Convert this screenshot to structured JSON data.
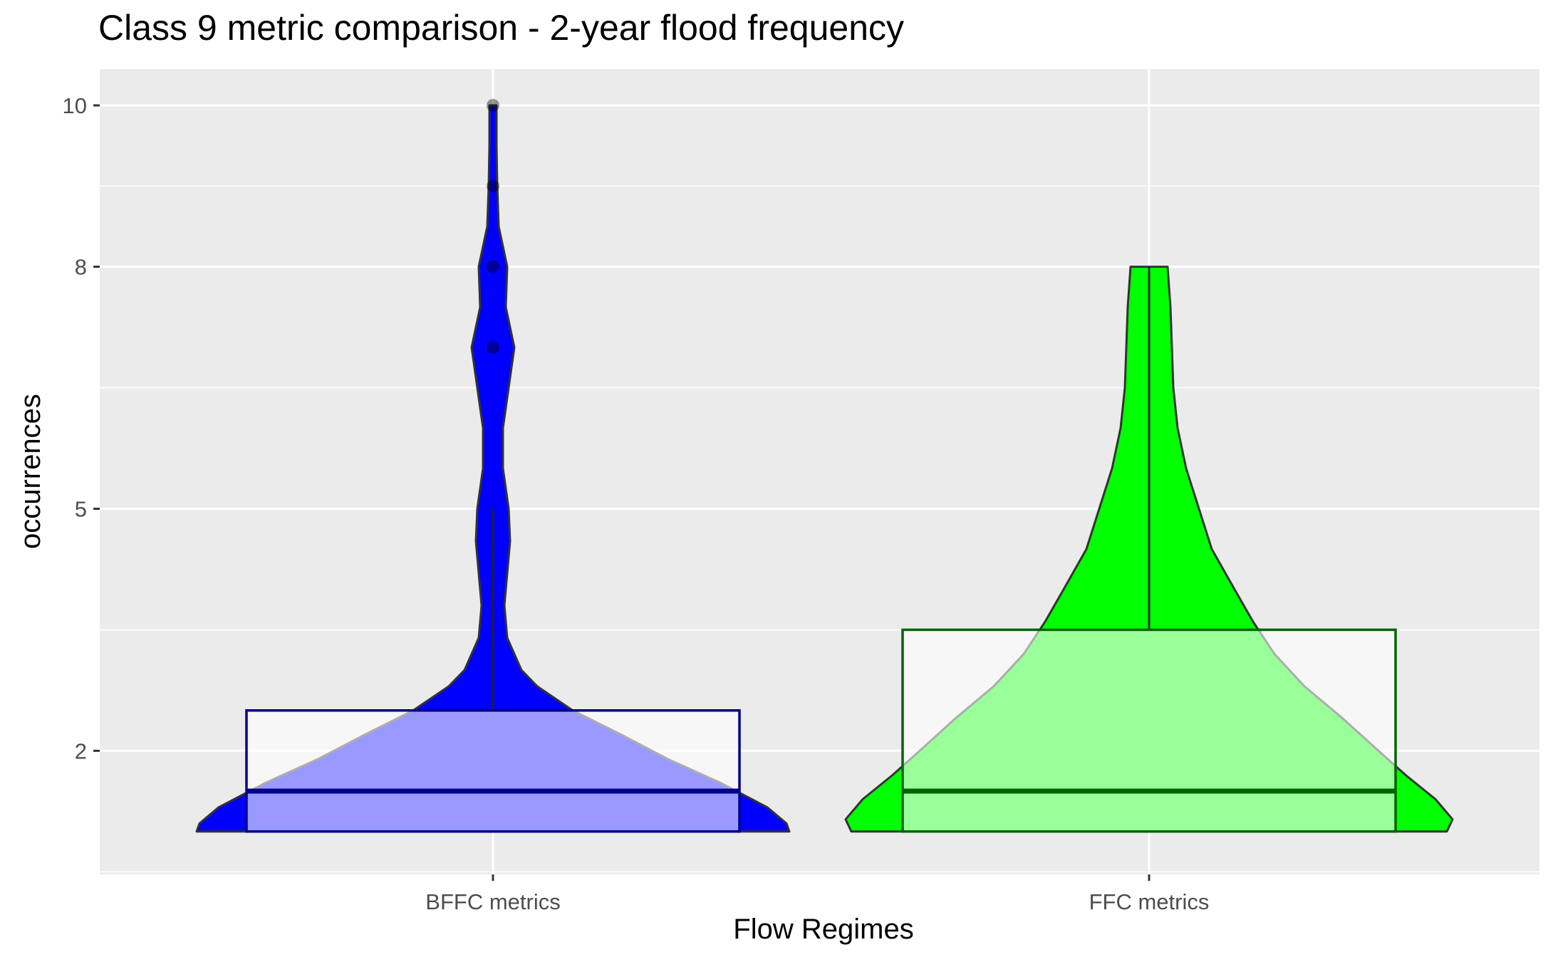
{
  "chart_data": {
    "type": "violin",
    "title": "Class 9 metric comparison - 2-year flood frequency",
    "xlabel": "Flow Regimes",
    "ylabel": "occurrences",
    "categories": [
      "BFFC metrics",
      "FFC metrics"
    ],
    "ylim": [
      0.5,
      10.4
    ],
    "yticks": [
      2,
      5,
      8,
      10
    ],
    "grid": true,
    "colors": {
      "panel_bg": "#ebebeb",
      "grid": "#ffffff",
      "bffc_fill": "#0000ff",
      "ffc_fill": "#00ff00",
      "bffc_box_edge": "#00008b",
      "ffc_box_edge": "#006400",
      "box_fill": "#ffffff",
      "violin_outline": "#333333"
    },
    "series": [
      {
        "category": "BFFC metrics",
        "min": 1,
        "q1": 1,
        "median": 1.5,
        "q3": 2.5,
        "whisker_high": 5,
        "max": 10,
        "outliers": [
          7,
          8,
          9,
          10
        ]
      },
      {
        "category": "FFC metrics",
        "min": 1,
        "q1": 1,
        "median": 1.5,
        "q3": 3.5,
        "whisker_high": 8,
        "max": 8,
        "outliers": []
      }
    ]
  }
}
